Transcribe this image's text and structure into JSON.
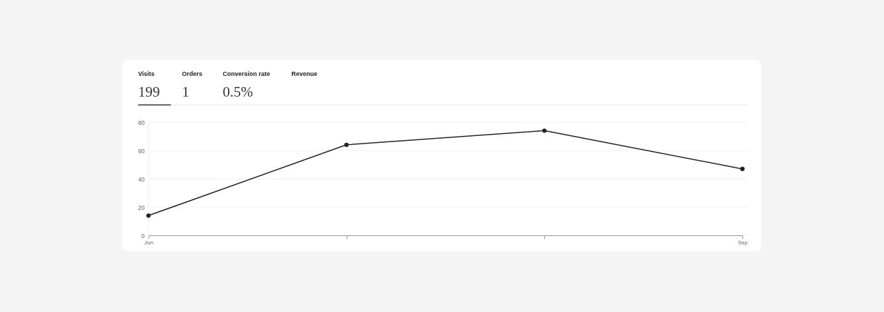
{
  "chart_data": [
    {
      "type": "other",
      "categories": [
        "Visits",
        "Orders",
        "Conversion rate",
        "Revenue"
      ],
      "value_labels": [
        "199",
        "1",
        "0.5%",
        null
      ]
    },
    {
      "type": "line",
      "categories": [
        "Jun",
        null,
        null,
        "Sep"
      ],
      "values": [
        14,
        64,
        74,
        47
      ],
      "color": "#222222",
      "ylim": [
        0,
        80
      ],
      "yticks": [
        0,
        20,
        40,
        60,
        80
      ],
      "grid": "y",
      "marker": "circle",
      "line_style": "solid"
    }
  ]
}
